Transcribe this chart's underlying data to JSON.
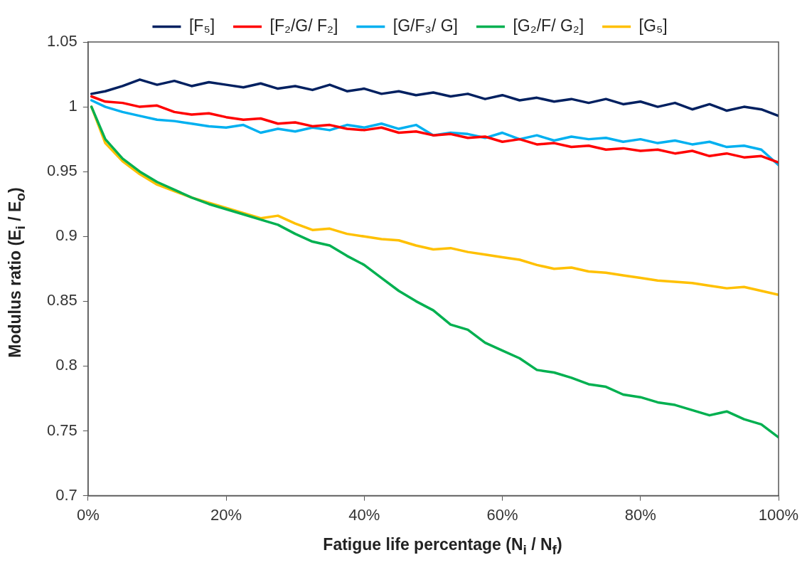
{
  "chart_data": {
    "type": "line",
    "xlabel": "Fatigue life percentage (N$_{i}$ / N$_{f}$)",
    "ylabel": "Modulus ratio (E$_{i}$ / E$_{o}$)",
    "x": [
      0.5,
      2.5,
      5,
      7.5,
      10,
      12.5,
      15,
      17.5,
      20,
      22.5,
      25,
      27.5,
      30,
      32.5,
      35,
      37.5,
      40,
      42.5,
      45,
      47.5,
      50,
      52.5,
      55,
      57.5,
      60,
      62.5,
      65,
      67.5,
      70,
      72.5,
      75,
      77.5,
      80,
      82.5,
      85,
      87.5,
      90,
      92.5,
      95,
      97.5,
      100
    ],
    "series": [
      {
        "name": "[F₅]",
        "color": "#002060",
        "values": [
          1.01,
          1.012,
          1.016,
          1.021,
          1.017,
          1.02,
          1.016,
          1.019,
          1.017,
          1.015,
          1.018,
          1.014,
          1.016,
          1.013,
          1.017,
          1.012,
          1.014,
          1.01,
          1.012,
          1.009,
          1.011,
          1.008,
          1.01,
          1.006,
          1.009,
          1.005,
          1.007,
          1.004,
          1.006,
          1.003,
          1.006,
          1.002,
          1.004,
          1.0,
          1.003,
          0.998,
          1.002,
          0.997,
          1.0,
          0.998,
          0.993
        ]
      },
      {
        "name": "[F₂/G/ F₂]",
        "color": "#ff0000",
        "values": [
          1.008,
          1.004,
          1.003,
          1.0,
          1.001,
          0.996,
          0.994,
          0.995,
          0.992,
          0.99,
          0.991,
          0.987,
          0.988,
          0.985,
          0.986,
          0.983,
          0.982,
          0.984,
          0.98,
          0.981,
          0.978,
          0.979,
          0.976,
          0.977,
          0.973,
          0.975,
          0.971,
          0.972,
          0.969,
          0.97,
          0.967,
          0.968,
          0.966,
          0.967,
          0.964,
          0.966,
          0.962,
          0.964,
          0.961,
          0.962,
          0.957
        ]
      },
      {
        "name": "[G/F₃/ G]",
        "color": "#00b0f0",
        "values": [
          1.005,
          1.0,
          0.996,
          0.993,
          0.99,
          0.989,
          0.987,
          0.985,
          0.984,
          0.986,
          0.98,
          0.983,
          0.981,
          0.984,
          0.982,
          0.986,
          0.984,
          0.987,
          0.983,
          0.986,
          0.978,
          0.98,
          0.979,
          0.976,
          0.98,
          0.975,
          0.978,
          0.974,
          0.977,
          0.975,
          0.976,
          0.973,
          0.975,
          0.972,
          0.974,
          0.971,
          0.973,
          0.969,
          0.97,
          0.967,
          0.955
        ]
      },
      {
        "name": "[G₂/F/ G₂]",
        "color": "#00b050",
        "values": [
          1.0,
          0.975,
          0.96,
          0.95,
          0.942,
          0.936,
          0.93,
          0.925,
          0.921,
          0.917,
          0.913,
          0.909,
          0.902,
          0.896,
          0.893,
          0.885,
          0.878,
          0.868,
          0.858,
          0.85,
          0.843,
          0.832,
          0.828,
          0.818,
          0.812,
          0.806,
          0.797,
          0.795,
          0.791,
          0.786,
          0.784,
          0.778,
          0.776,
          0.772,
          0.77,
          0.766,
          0.762,
          0.765,
          0.759,
          0.755,
          0.745
        ]
      },
      {
        "name": "[G₅]",
        "color": "#ffc000",
        "values": [
          1.0,
          0.972,
          0.958,
          0.948,
          0.94,
          0.935,
          0.93,
          0.926,
          0.922,
          0.918,
          0.914,
          0.916,
          0.91,
          0.905,
          0.906,
          0.902,
          0.9,
          0.898,
          0.897,
          0.893,
          0.89,
          0.891,
          0.888,
          0.886,
          0.884,
          0.882,
          0.878,
          0.875,
          0.876,
          0.873,
          0.872,
          0.87,
          0.868,
          0.866,
          0.865,
          0.864,
          0.862,
          0.86,
          0.861,
          0.858,
          0.855
        ]
      }
    ],
    "xlim": [
      0,
      100
    ],
    "xticks": [
      {
        "value": 0,
        "label": "0%"
      },
      {
        "value": 20,
        "label": "20%"
      },
      {
        "value": 40,
        "label": "40%"
      },
      {
        "value": 60,
        "label": "60%"
      },
      {
        "value": 80,
        "label": "80%"
      },
      {
        "value": 100,
        "label": "100%"
      }
    ],
    "ylim": [
      0.7,
      1.05
    ],
    "yticks": [
      0.7,
      0.75,
      0.8,
      0.85,
      0.9,
      0.95,
      1,
      1.05
    ],
    "grid": false,
    "legend": "top",
    "marker": "none",
    "line_style": "solid"
  }
}
